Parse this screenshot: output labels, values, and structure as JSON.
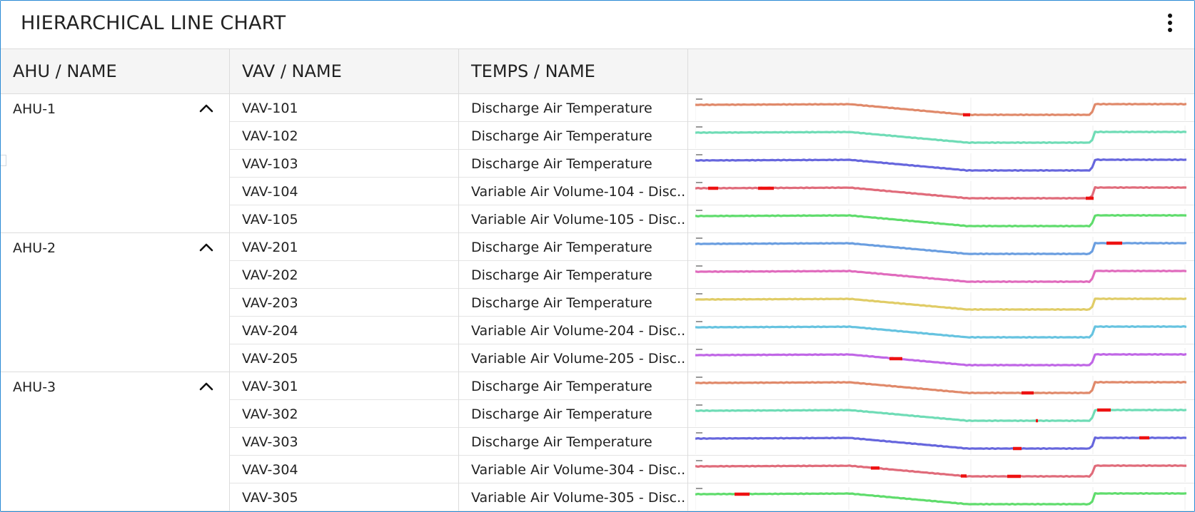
{
  "panel": {
    "title": "HIERARCHICAL LINE CHART",
    "menu_icon": "more-vertical-icon"
  },
  "columns": [
    "AHU / NAME",
    "VAV / NAME",
    "TEMPS / NAME",
    ""
  ],
  "colors": {
    "alarm": "#ee1111",
    "border": "#2a8ad4"
  },
  "groups": [
    {
      "name": "AHU-1",
      "expanded": true,
      "toggle_icon": "chevron-up-icon",
      "rows": [
        {
          "vav": "VAV-101",
          "temp": "Discharge Air Temperature",
          "color": "#e0896a"
        },
        {
          "vav": "VAV-102",
          "temp": "Discharge Air Temperature",
          "color": "#6fdcb6"
        },
        {
          "vav": "VAV-103",
          "temp": "Discharge Air Temperature",
          "color": "#6666dd"
        },
        {
          "vav": "VAV-104",
          "temp": "Variable Air Volume-104 - Disc...",
          "color": "#e06b7a"
        },
        {
          "vav": "VAV-105",
          "temp": "Variable Air Volume-105 - Disc...",
          "color": "#5fdc6c"
        }
      ]
    },
    {
      "name": "AHU-2",
      "expanded": true,
      "toggle_icon": "chevron-up-icon",
      "rows": [
        {
          "vav": "VAV-201",
          "temp": "Discharge Air Temperature",
          "color": "#6a9ee0"
        },
        {
          "vav": "VAV-202",
          "temp": "Discharge Air Temperature",
          "color": "#e06bbd"
        },
        {
          "vav": "VAV-203",
          "temp": "Discharge Air Temperature",
          "color": "#e0cc66"
        },
        {
          "vav": "VAV-204",
          "temp": "Variable Air Volume-204 - Disc...",
          "color": "#66c3e0"
        },
        {
          "vav": "VAV-205",
          "temp": "Variable Air Volume-205 - Disc...",
          "color": "#c066e6"
        }
      ]
    },
    {
      "name": "AHU-3",
      "expanded": true,
      "toggle_icon": "chevron-up-icon",
      "rows": [
        {
          "vav": "VAV-301",
          "temp": "Discharge Air Temperature",
          "color": "#e0896a"
        },
        {
          "vav": "VAV-302",
          "temp": "Discharge Air Temperature",
          "color": "#6fdcb6"
        },
        {
          "vav": "VAV-303",
          "temp": "Discharge Air Temperature",
          "color": "#6666dd"
        },
        {
          "vav": "VAV-304",
          "temp": "Variable Air Volume-304 - Disc...",
          "color": "#e06b7a"
        },
        {
          "vav": "VAV-305",
          "temp": "Variable Air Volume-305 - Disc...",
          "color": "#5fdc6c"
        }
      ]
    }
  ]
}
